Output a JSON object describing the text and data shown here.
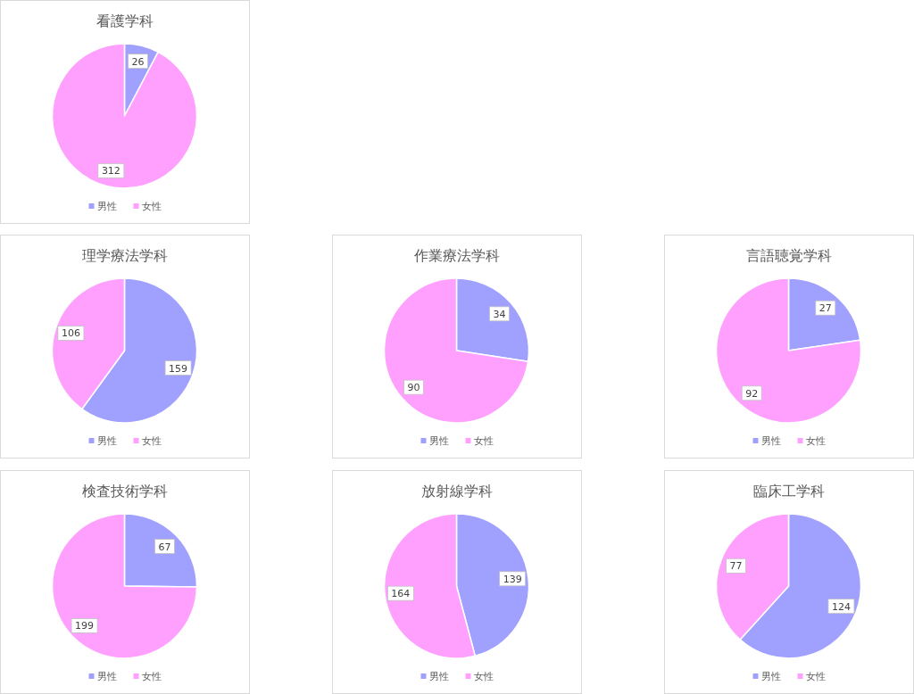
{
  "chart_data": [
    {
      "type": "pie",
      "title": "看護学科",
      "categories": [
        "男性",
        "女性"
      ],
      "values": [
        26,
        312
      ],
      "colors": [
        "#a0a0ff",
        "#ffa0ff"
      ],
      "data_labels": true,
      "legend": "bottom"
    },
    {
      "type": "pie",
      "title": "理学療法学科",
      "categories": [
        "男性",
        "女性"
      ],
      "values": [
        159,
        106
      ],
      "colors": [
        "#a0a0ff",
        "#ffa0ff"
      ],
      "data_labels": true,
      "legend": "bottom"
    },
    {
      "type": "pie",
      "title": "作業療法学科",
      "categories": [
        "男性",
        "女性"
      ],
      "values": [
        34,
        90
      ],
      "colors": [
        "#a0a0ff",
        "#ffa0ff"
      ],
      "data_labels": true,
      "legend": "bottom"
    },
    {
      "type": "pie",
      "title": "言語聴覚学科",
      "categories": [
        "男性",
        "女性"
      ],
      "values": [
        27,
        92
      ],
      "colors": [
        "#a0a0ff",
        "#ffa0ff"
      ],
      "data_labels": true,
      "legend": "bottom"
    },
    {
      "type": "pie",
      "title": "検査技術学科",
      "categories": [
        "男性",
        "女性"
      ],
      "values": [
        67,
        199
      ],
      "colors": [
        "#a0a0ff",
        "#ffa0ff"
      ],
      "data_labels": true,
      "legend": "bottom"
    },
    {
      "type": "pie",
      "title": "放射線学科",
      "categories": [
        "男性",
        "女性"
      ],
      "values": [
        139,
        164
      ],
      "colors": [
        "#a0a0ff",
        "#ffa0ff"
      ],
      "data_labels": true,
      "legend": "bottom"
    },
    {
      "type": "pie",
      "title": "臨床工学科",
      "categories": [
        "男性",
        "女性"
      ],
      "values": [
        124,
        77
      ],
      "colors": [
        "#a0a0ff",
        "#ffa0ff"
      ],
      "data_labels": true,
      "legend": "bottom"
    }
  ]
}
